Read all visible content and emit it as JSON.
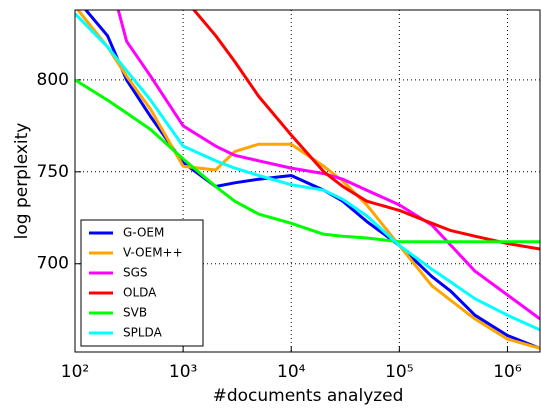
{
  "chart_data": {
    "type": "line",
    "xlabel": "#documents analyzed",
    "ylabel": "log perplexity",
    "xscale": "log",
    "grid": true,
    "legend": "lower left",
    "x": [
      100,
      200,
      300,
      500,
      1000,
      2000,
      3000,
      5000,
      10000,
      20000,
      30000,
      50000,
      100000,
      200000,
      300000,
      500000,
      1000000,
      2000000
    ],
    "xlim": [
      100,
      2000000
    ],
    "xticks": [
      {
        "value": 100,
        "label": "10²"
      },
      {
        "value": 1000,
        "label": "10³"
      },
      {
        "value": 10000,
        "label": "10⁴"
      },
      {
        "value": 100000,
        "label": "10⁵"
      },
      {
        "value": 1000000,
        "label": "10⁶"
      }
    ],
    "ylim": [
      652,
      838
    ],
    "yticks": [
      700,
      750,
      800
    ],
    "series": [
      {
        "name": "G-OEM",
        "color": "#0000ff",
        "values": [
          845,
          824,
          800,
          780,
          755,
          742,
          744,
          746,
          748,
          740,
          734,
          723,
          710,
          693,
          685,
          672,
          661,
          654
        ]
      },
      {
        "name": "V-OEM++",
        "color": "#ffa500",
        "values": [
          840,
          818,
          802,
          784,
          753,
          751,
          761,
          765,
          765,
          753,
          745,
          732,
          710,
          688,
          680,
          670,
          659,
          654
        ]
      },
      {
        "name": "SGS",
        "color": "#ff00ff",
        "values": [
          null,
          860,
          821,
          802,
          775,
          764,
          759,
          756,
          752,
          749,
          746,
          740,
          732,
          721,
          710,
          696,
          683,
          670
        ]
      },
      {
        "name": "OLDA",
        "color": "#ff0000",
        "values": [
          null,
          null,
          null,
          null,
          845,
          824,
          810,
          791,
          770,
          750,
          742,
          734,
          729,
          722,
          718,
          715,
          711,
          708
        ]
      },
      {
        "name": "SVB",
        "color": "#00ff00",
        "values": [
          800,
          789,
          782,
          773,
          757,
          742,
          734,
          727,
          722,
          716,
          715,
          714,
          712,
          712,
          712,
          712,
          712,
          712
        ]
      },
      {
        "name": "SPLDA",
        "color": "#00ffff",
        "values": [
          836,
          818,
          805,
          789,
          764,
          756,
          752,
          748,
          743,
          740,
          735,
          726,
          710,
          697,
          690,
          681,
          672,
          664
        ]
      }
    ]
  }
}
